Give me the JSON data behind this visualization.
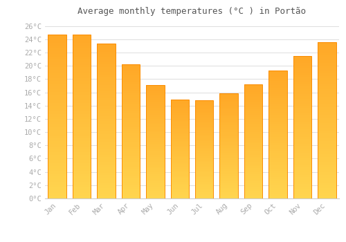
{
  "title": "Average monthly temperatures (°C ) in Portão",
  "months": [
    "Jan",
    "Feb",
    "Mar",
    "Apr",
    "May",
    "Jun",
    "Jul",
    "Aug",
    "Sep",
    "Oct",
    "Nov",
    "Dec"
  ],
  "temperatures": [
    24.7,
    24.7,
    23.3,
    20.2,
    17.1,
    14.9,
    14.8,
    15.8,
    17.2,
    19.3,
    21.5,
    23.6
  ],
  "bar_color_main": "#FFA726",
  "bar_color_light": "#FFD54F",
  "bar_edge_color": "#FB8C00",
  "background_color": "#FFFFFF",
  "grid_color": "#DDDDDD",
  "ytick_labels": [
    "0°C",
    "2°C",
    "4°C",
    "6°C",
    "8°C",
    "10°C",
    "12°C",
    "14°C",
    "16°C",
    "18°C",
    "20°C",
    "22°C",
    "24°C",
    "26°C"
  ],
  "ytick_values": [
    0,
    2,
    4,
    6,
    8,
    10,
    12,
    14,
    16,
    18,
    20,
    22,
    24,
    26
  ],
  "ylim": [
    0,
    27
  ],
  "tick_label_color": "#AAAAAA",
  "title_color": "#555555",
  "font_family": "monospace",
  "bar_width": 0.75,
  "figsize": [
    5.0,
    3.5
  ],
  "dpi": 100
}
